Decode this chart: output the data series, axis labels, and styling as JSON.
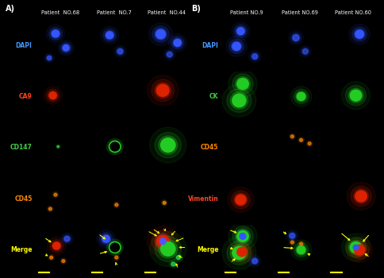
{
  "panel_A_patients": [
    "Patient  NO.68",
    "Patient  NO.7",
    "Patient  NO.44"
  ],
  "panel_B_patients": [
    "Patient NO.9",
    "Patient NO.69",
    "Patient NO.60"
  ],
  "panel_A_row_labels": [
    "DAPI",
    "CA9",
    "CD147",
    "CD45",
    "Merge"
  ],
  "panel_B_row_labels": [
    "DAPI",
    "CK",
    "CD45",
    "Vimentin",
    "Merge"
  ],
  "panel_A_label_colors": [
    "#4499ff",
    "#ff4422",
    "#44cc44",
    "#ff8800",
    "#ffff00"
  ],
  "panel_B_label_colors": [
    "#4499ff",
    "#44cc44",
    "#ff8800",
    "#ff4422",
    "#ffff00"
  ],
  "background_color": "#000000",
  "rows": 5,
  "cols": 3,
  "cell_sep_color": "#333333",
  "scale_bar_color": "#ffff00",
  "header_color": "#ffffff",
  "section_label_color": "#ffffff"
}
